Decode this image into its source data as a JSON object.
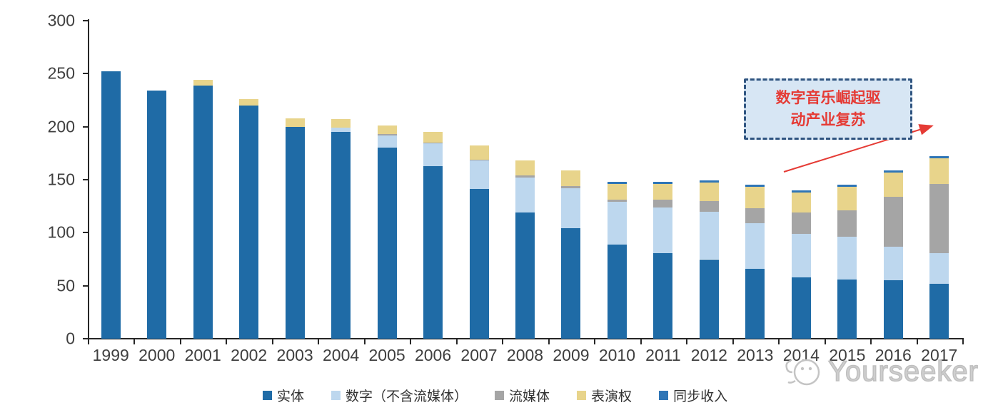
{
  "chart_data": {
    "type": "bar",
    "stacked": true,
    "title": "",
    "xlabel": "",
    "ylabel": "",
    "categories": [
      "1999",
      "2000",
      "2001",
      "2002",
      "2003",
      "2004",
      "2005",
      "2006",
      "2007",
      "2008",
      "2009",
      "2010",
      "2011",
      "2012",
      "2013",
      "2014",
      "2015",
      "2016",
      "2017"
    ],
    "series": [
      {
        "name": "实体",
        "color": "#1f6ba6",
        "values": [
          252,
          234,
          239,
          220,
          200,
          195,
          180,
          163,
          141,
          119,
          104,
          89,
          81,
          75,
          66,
          58,
          56,
          55,
          52
        ]
      },
      {
        "name": "数字（不含流媒体）",
        "color": "#bdd7ee",
        "values": [
          0,
          0,
          0,
          0,
          0,
          4,
          12,
          21,
          27,
          33,
          38,
          40,
          43,
          45,
          43,
          41,
          40,
          32,
          29
        ]
      },
      {
        "name": "流媒体",
        "color": "#a5a5a5",
        "values": [
          0,
          0,
          0,
          0,
          0,
          0,
          1,
          1,
          1,
          2,
          2,
          2,
          7,
          10,
          14,
          20,
          25,
          47,
          65
        ]
      },
      {
        "name": "表演权",
        "color": "#e8d48b",
        "values": [
          0,
          0,
          5,
          6,
          8,
          8,
          8,
          10,
          13,
          14,
          15,
          15,
          15,
          17,
          20,
          19,
          22,
          23,
          24
        ]
      },
      {
        "name": "同步收入",
        "color": "#2e75b6",
        "values": [
          0,
          0,
          0,
          0,
          0,
          0,
          0,
          0,
          0,
          0,
          0,
          2,
          2,
          2,
          2,
          2,
          2,
          2,
          2
        ]
      }
    ],
    "ylim": [
      0,
      300
    ],
    "ytick_step": 50,
    "yticks": [
      "0",
      "50",
      "100",
      "150",
      "200",
      "250",
      "300"
    ],
    "grid": false,
    "legend_position": "bottom"
  },
  "annotation": {
    "line1": "数字音乐崛起驱",
    "line2": "动产业复苏",
    "text_color": "#e53b35",
    "box_fill": "#d7e6f4",
    "box_border": "#2f5480",
    "arrow_color": "#e53b35"
  },
  "watermark": {
    "text": "Yourseeker",
    "color": "#bfbfbf"
  },
  "axis_color": "#262626"
}
